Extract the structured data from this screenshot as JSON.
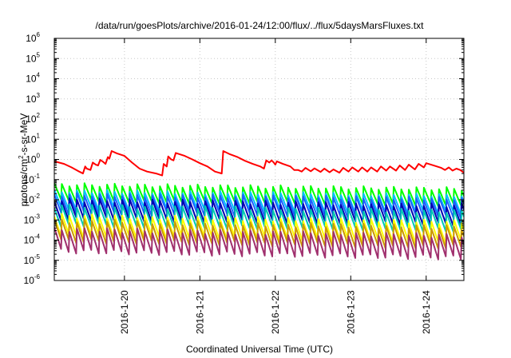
{
  "chart_data": {
    "type": "line",
    "title": "/data/run/goesPlots/archive/2016-01-24/12:00/flux/../flux/5daysMarsFluxes.txt",
    "xlabel": "Coordinated Universal Time (UTC)",
    "ylabel": {
      "prefix": "protons/cm",
      "sup": "2",
      "suffix": "-s-sr-MeV"
    },
    "y_scale": "log",
    "ylim": [
      1e-06,
      1000000.0
    ],
    "y_ticks": [
      {
        "base": "10",
        "exp": "-6",
        "value": 1e-06
      },
      {
        "base": "10",
        "exp": "-5",
        "value": 1e-05
      },
      {
        "base": "10",
        "exp": "-4",
        "value": 0.0001
      },
      {
        "base": "10",
        "exp": "-3",
        "value": 0.001
      },
      {
        "base": "10",
        "exp": "-2",
        "value": 0.01
      },
      {
        "base": "10",
        "exp": "-1",
        "value": 0.1
      },
      {
        "base": "10",
        "exp": "0",
        "value": 1
      },
      {
        "base": "10",
        "exp": "1",
        "value": 10
      },
      {
        "base": "10",
        "exp": "2",
        "value": 100
      },
      {
        "base": "10",
        "exp": "3",
        "value": 1000
      },
      {
        "base": "10",
        "exp": "4",
        "value": 10000
      },
      {
        "base": "10",
        "exp": "5",
        "value": 100000
      },
      {
        "base": "10",
        "exp": "6",
        "value": 1000000
      }
    ],
    "x_ticks": [
      {
        "label": "2016-1-20",
        "day": 20
      },
      {
        "label": "2016-1-21",
        "day": 21
      },
      {
        "label": "2016-1-22",
        "day": 22
      },
      {
        "label": "2016-1-23",
        "day": 23
      },
      {
        "label": "2016-1-24",
        "day": 24
      }
    ],
    "x_range_days": [
      19.07,
      24.5
    ],
    "grid": true,
    "series": [
      {
        "color": "#ff0000",
        "width": 2,
        "points": [
          [
            19.07,
            0.8
          ],
          [
            19.2,
            0.6
          ],
          [
            19.3,
            0.4
          ],
          [
            19.4,
            0.25
          ],
          [
            19.45,
            0.2
          ],
          [
            19.48,
            0.45
          ],
          [
            19.5,
            0.35
          ],
          [
            19.55,
            0.3
          ],
          [
            19.58,
            0.7
          ],
          [
            19.62,
            0.55
          ],
          [
            19.65,
            0.5
          ],
          [
            19.68,
            0.95
          ],
          [
            19.72,
            0.75
          ],
          [
            19.75,
            0.6
          ],
          [
            19.78,
            1.3
          ],
          [
            19.8,
            1.1
          ],
          [
            19.83,
            2.6
          ],
          [
            19.9,
            2.0
          ],
          [
            20.0,
            1.5
          ],
          [
            20.1,
            0.7
          ],
          [
            20.2,
            0.35
          ],
          [
            20.3,
            0.25
          ],
          [
            20.42,
            0.2
          ],
          [
            20.5,
            0.16
          ],
          [
            20.52,
            0.6
          ],
          [
            20.56,
            0.45
          ],
          [
            20.58,
            1.4
          ],
          [
            20.62,
            1.0
          ],
          [
            20.65,
            0.9
          ],
          [
            20.68,
            2.1
          ],
          [
            20.8,
            1.5
          ],
          [
            20.9,
            1.0
          ],
          [
            21.0,
            0.65
          ],
          [
            21.1,
            0.45
          ],
          [
            21.2,
            0.25
          ],
          [
            21.25,
            0.22
          ],
          [
            21.29,
            0.2
          ],
          [
            21.31,
            2.6
          ],
          [
            21.4,
            1.8
          ],
          [
            21.5,
            1.3
          ],
          [
            21.6,
            0.85
          ],
          [
            21.7,
            0.6
          ],
          [
            21.8,
            0.45
          ],
          [
            21.85,
            0.35
          ],
          [
            21.88,
            0.9
          ],
          [
            21.92,
            0.7
          ],
          [
            21.95,
            0.9
          ],
          [
            21.98,
            0.7
          ],
          [
            22.0,
            0.55
          ],
          [
            22.02,
            0.8
          ],
          [
            22.1,
            0.6
          ],
          [
            22.2,
            0.45
          ],
          [
            22.25,
            0.3
          ],
          [
            22.3,
            0.3
          ],
          [
            22.35,
            0.25
          ],
          [
            22.4,
            0.38
          ],
          [
            22.47,
            0.26
          ],
          [
            22.52,
            0.36
          ],
          [
            22.6,
            0.24
          ],
          [
            22.65,
            0.35
          ],
          [
            22.72,
            0.23
          ],
          [
            22.77,
            0.32
          ],
          [
            22.85,
            0.22
          ],
          [
            22.9,
            0.38
          ],
          [
            22.97,
            0.25
          ],
          [
            23.02,
            0.4
          ],
          [
            23.1,
            0.25
          ],
          [
            23.15,
            0.4
          ],
          [
            23.22,
            0.25
          ],
          [
            23.27,
            0.4
          ],
          [
            23.35,
            0.25
          ],
          [
            23.4,
            0.45
          ],
          [
            23.47,
            0.28
          ],
          [
            23.52,
            0.45
          ],
          [
            23.6,
            0.28
          ],
          [
            23.65,
            0.5
          ],
          [
            23.72,
            0.3
          ],
          [
            23.77,
            0.55
          ],
          [
            23.85,
            0.32
          ],
          [
            23.9,
            0.6
          ],
          [
            23.97,
            0.4
          ],
          [
            24.0,
            0.65
          ],
          [
            24.1,
            0.5
          ],
          [
            24.2,
            0.38
          ],
          [
            24.25,
            0.3
          ],
          [
            24.3,
            0.4
          ],
          [
            24.35,
            0.28
          ],
          [
            24.4,
            0.35
          ],
          [
            24.45,
            0.3
          ],
          [
            24.5,
            0.22
          ]
        ]
      },
      {
        "color": "#00ff00",
        "width": 2,
        "base": 0.016,
        "amp": 0.55,
        "decay": 0.9,
        "trend": -0.004
      },
      {
        "color": "#00bfff",
        "width": 2,
        "base": 0.0075,
        "amp": 0.55,
        "decay": 0.95,
        "trend": -0.004
      },
      {
        "color": "#1e5eff",
        "width": 2,
        "base": 0.0045,
        "amp": 0.6,
        "decay": 1.0,
        "trend": -0.004
      },
      {
        "color": "#0000b0",
        "width": 2,
        "base": 0.0022,
        "amp": 0.65,
        "decay": 1.05,
        "trend": -0.005
      },
      {
        "color": "#00c8b4",
        "width": 2,
        "base": 0.0011,
        "amp": 0.65,
        "decay": 1.05,
        "trend": -0.005
      },
      {
        "color": "#ffff00",
        "width": 2,
        "base": 0.00032,
        "amp": 0.7,
        "decay": 1.1,
        "trend": -0.006
      },
      {
        "color": "#cc9900",
        "width": 2,
        "base": 0.00016,
        "amp": 0.75,
        "decay": 1.1,
        "trend": -0.006
      },
      {
        "color": "#a0306e",
        "width": 2,
        "base": 6e-05,
        "amp": 0.75,
        "decay": 1.2,
        "trend": -0.006
      }
    ]
  }
}
